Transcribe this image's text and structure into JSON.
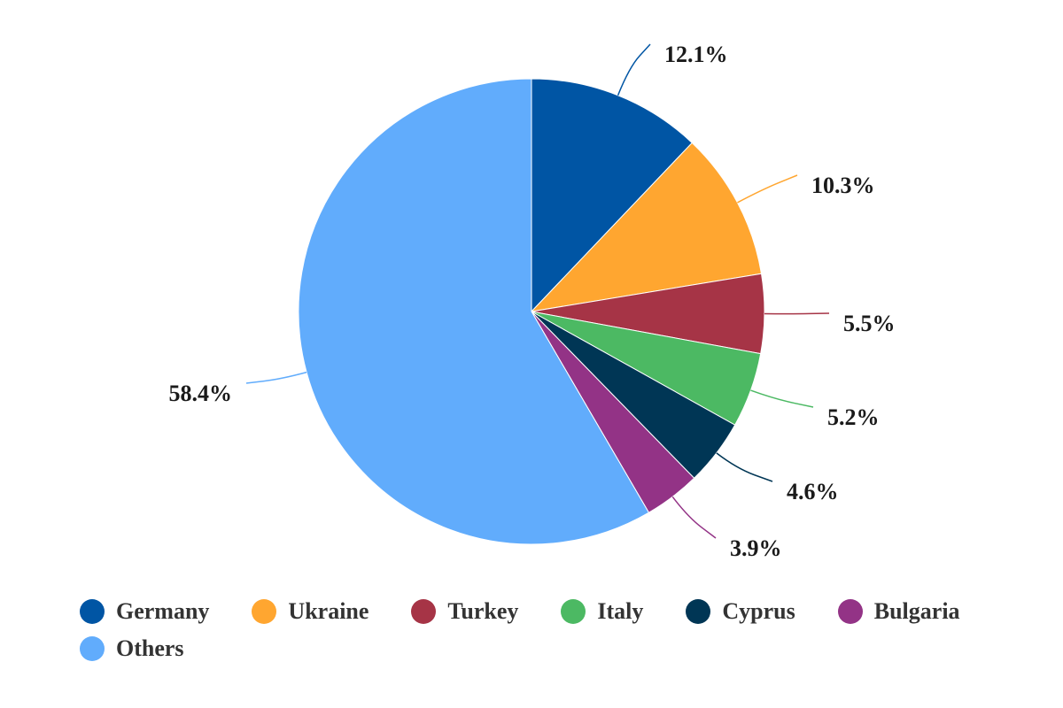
{
  "chart_data": {
    "type": "pie",
    "categories": [
      "Germany",
      "Ukraine",
      "Turkey",
      "Italy",
      "Cyprus",
      "Bulgaria",
      "Others"
    ],
    "values": [
      12.1,
      10.3,
      5.5,
      5.2,
      4.6,
      3.9,
      58.4
    ],
    "value_labels": [
      "12.1%",
      "10.3%",
      "5.5%",
      "5.2%",
      "4.6%",
      "3.9%",
      "58.4%"
    ],
    "colors": [
      "#0055a4",
      "#ffa630",
      "#a63446",
      "#4cb963",
      "#003655",
      "#933386",
      "#61acfc"
    ],
    "start_angle": "12 o'clock",
    "direction": "clockwise",
    "legend_position": "bottom"
  }
}
